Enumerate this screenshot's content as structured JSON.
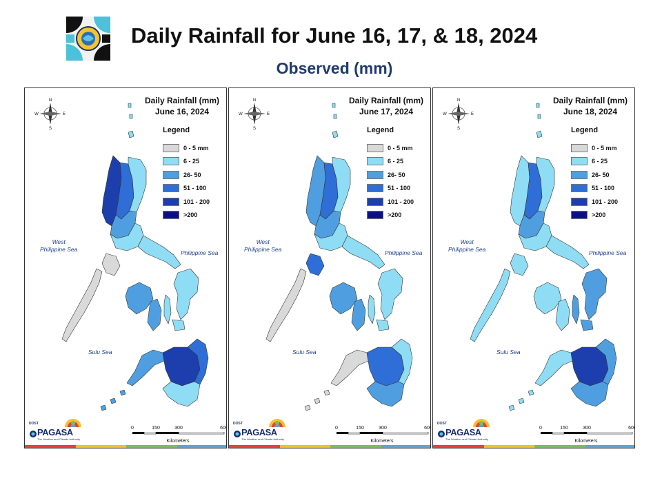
{
  "slide": {
    "title": "Daily Rainfall for June 16, 17, & 18, 2024",
    "subtitle": "Observed (mm)"
  },
  "colors": {
    "class_0_5": "#d9d9d9",
    "class_6_25": "#8fdcf5",
    "class_26_50": "#4f9fe0",
    "class_51_100": "#2e6ed6",
    "class_101_200": "#1d3fae",
    "class_gt_200": "#0b0f8a",
    "sea_label": "#1c3f8a",
    "stripe": [
      "#e8413c",
      "#f2c12e",
      "#7bbf5a",
      "#5aa6dc"
    ]
  },
  "legend": {
    "title": "Legend",
    "items": [
      {
        "label": "0 - 5 mm",
        "color": "#d9d9d9"
      },
      {
        "label": "6 - 25",
        "color": "#8fdcf5"
      },
      {
        "label": "26- 50",
        "color": "#4f9fe0"
      },
      {
        "label": "51 - 100",
        "color": "#2e6ed6"
      },
      {
        "label": "101 - 200",
        "color": "#1d3fae"
      },
      {
        "label": ">200",
        "color": "#0b0f8a"
      }
    ]
  },
  "compass": {
    "n": "N",
    "s": "S",
    "e": "E",
    "w": "W"
  },
  "seas": {
    "west": "West\nPhilippine Sea",
    "east": "Philippine Sea",
    "sulu": "Sulu Sea"
  },
  "scale": {
    "ticks": [
      "0",
      "150",
      "300",
      "600"
    ],
    "unit": "Kilometers"
  },
  "brand": {
    "small": "DOST",
    "name": "PAGASA",
    "tag": "The Weather and Climate Authority"
  },
  "panels": [
    {
      "title": "Daily Rainfall (mm)",
      "date": "June 16, 2024",
      "region_class": {
        "ilocos": 4,
        "cordillera": 3,
        "cagayan": 1,
        "central_luzon": 2,
        "south_luzon": 1,
        "bicol": 1,
        "mindoro": 0,
        "palawan": 0,
        "visayas_w": 2,
        "visayas_e": 1,
        "mindanao_w": 2,
        "mindanao_c": 4,
        "mindanao_e": 3,
        "mindanao_s": 1
      }
    },
    {
      "title": "Daily Rainfall (mm)",
      "date": "June 17, 2024",
      "region_class": {
        "ilocos": 2,
        "cordillera": 3,
        "cagayan": 1,
        "central_luzon": 2,
        "south_luzon": 1,
        "bicol": 1,
        "mindoro": 3,
        "palawan": 0,
        "visayas_w": 2,
        "visayas_e": 1,
        "mindanao_w": 0,
        "mindanao_c": 3,
        "mindanao_e": 1,
        "mindanao_s": 2
      }
    },
    {
      "title": "Daily Rainfall (mm)",
      "date": "June 18, 2024",
      "region_class": {
        "ilocos": 1,
        "cordillera": 3,
        "cagayan": 1,
        "central_luzon": 2,
        "south_luzon": 1,
        "bicol": 1,
        "mindoro": 1,
        "palawan": 1,
        "visayas_w": 1,
        "visayas_e": 2,
        "mindanao_w": 1,
        "mindanao_c": 4,
        "mindanao_e": 2,
        "mindanao_s": 2
      }
    }
  ]
}
